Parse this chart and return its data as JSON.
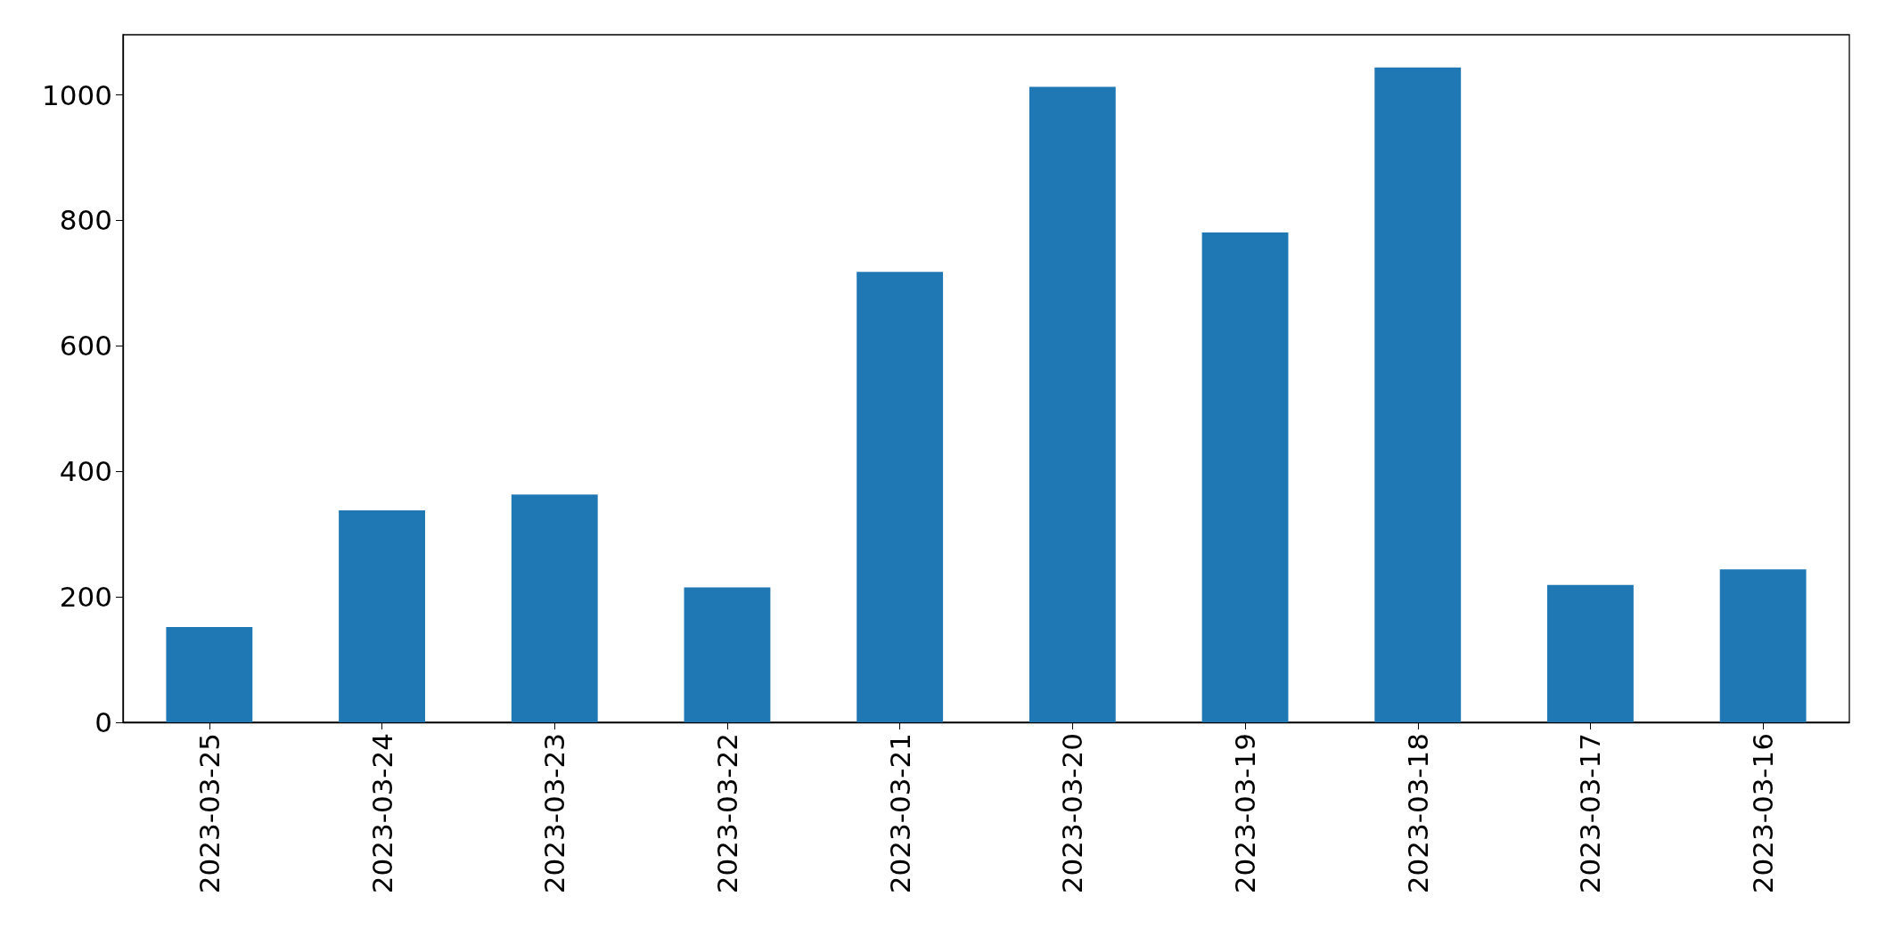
{
  "chart_data": {
    "type": "bar",
    "categories": [
      "2023-03-25",
      "2023-03-24",
      "2023-03-23",
      "2023-03-22",
      "2023-03-21",
      "2023-03-20",
      "2023-03-19",
      "2023-03-18",
      "2023-03-17",
      "2023-03-16"
    ],
    "values": [
      152,
      338,
      363,
      215,
      718,
      1013,
      781,
      1044,
      219,
      244
    ],
    "color": "#1f77b4",
    "ylim": [
      0,
      1096
    ],
    "yticks": [
      0,
      200,
      400,
      600,
      800,
      1000
    ],
    "grid": false
  }
}
